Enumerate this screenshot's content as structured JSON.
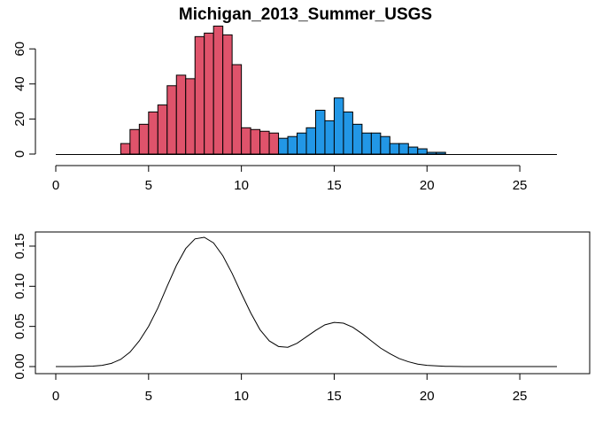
{
  "chart_data": [
    {
      "type": "bar",
      "title": "Michigan_2013_Summer_USGS",
      "xlabel": "",
      "ylabel": "",
      "xlim": [
        0,
        27
      ],
      "ylim": [
        0,
        70
      ],
      "x_ticks": [
        0,
        5,
        10,
        15,
        20,
        25
      ],
      "y_ticks": [
        0,
        20,
        40,
        60
      ],
      "bin_width": 0.5,
      "axes_box": false,
      "series": [
        {
          "color": "#DF536B",
          "bin_starts": [
            3.5,
            4.0,
            4.5,
            5.0,
            5.5,
            6.0,
            6.5,
            7.0,
            7.5,
            8.0,
            8.5,
            9.0,
            9.5,
            10.0,
            10.5,
            11.0,
            11.5,
            12.0
          ],
          "values": [
            6,
            14,
            17,
            24,
            28,
            39,
            45,
            43,
            67,
            69,
            73,
            68,
            51,
            15,
            14,
            13,
            12,
            5
          ]
        },
        {
          "color": "#2297E6",
          "bin_starts": [
            12.0,
            12.5,
            13.0,
            13.5,
            14.0,
            14.5,
            15.0,
            15.5,
            16.0,
            16.5,
            17.0,
            17.5,
            18.0,
            18.5,
            19.0,
            19.5,
            20.0,
            20.5
          ],
          "values": [
            9,
            10,
            12,
            15,
            25,
            19,
            32,
            24,
            17,
            12,
            12,
            10,
            6,
            6,
            4,
            3,
            1,
            1
          ]
        }
      ]
    },
    {
      "type": "line",
      "title": "",
      "xlabel": "",
      "ylabel": "",
      "xlim": [
        0,
        27
      ],
      "ylim": [
        0,
        0.16
      ],
      "x_ticks": [
        0,
        5,
        10,
        15,
        20,
        25
      ],
      "y_tick_labels": [
        "0.00",
        "0.05",
        "0.10",
        "0.15"
      ],
      "axes_box": true,
      "line_color": "#000000",
      "series": [
        {
          "x": [
            0,
            1,
            2,
            2.5,
            3,
            3.5,
            4,
            4.5,
            5,
            5.5,
            6,
            6.5,
            7,
            7.5,
            8,
            8.5,
            9,
            9.5,
            10,
            10.5,
            11,
            11.5,
            12,
            12.5,
            13,
            13.5,
            14,
            14.5,
            15,
            15.5,
            16,
            16.5,
            17,
            17.5,
            18,
            18.5,
            19,
            19.5,
            20,
            21,
            22,
            23,
            24,
            25,
            26,
            27
          ],
          "y": [
            0,
            0,
            0.0005,
            0.0015,
            0.004,
            0.009,
            0.018,
            0.032,
            0.05,
            0.073,
            0.1,
            0.126,
            0.147,
            0.159,
            0.161,
            0.154,
            0.138,
            0.116,
            0.091,
            0.067,
            0.046,
            0.032,
            0.025,
            0.024,
            0.029,
            0.037,
            0.045,
            0.052,
            0.055,
            0.054,
            0.049,
            0.041,
            0.032,
            0.023,
            0.016,
            0.01,
            0.006,
            0.003,
            0.0015,
            0.0003,
            0,
            0,
            0,
            0,
            0,
            0
          ]
        }
      ]
    }
  ]
}
